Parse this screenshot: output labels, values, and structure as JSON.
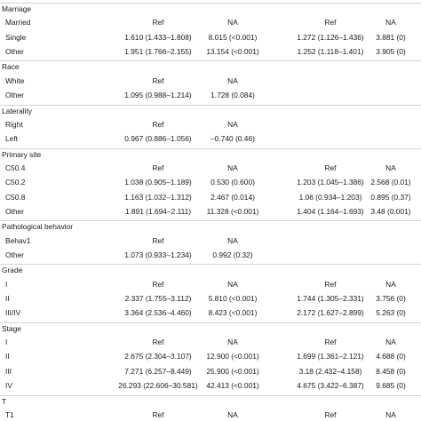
{
  "rows": [
    {
      "label": "Marriage",
      "type": "section"
    },
    {
      "label": "Married",
      "c1": "Ref",
      "c2": "NA",
      "c3": "Ref",
      "c4": "NA"
    },
    {
      "label": "Single",
      "c1": "1.610 (1.433–1.808)",
      "c2": "8.015 (<0.001)",
      "c3": "1.272 (1.126–1.436)",
      "c4": "3.881 (0)"
    },
    {
      "label": "Other",
      "c1": "1.951 (1.766–2.155)",
      "c2": "13.154 (<0.001)",
      "c3": "1.252 (1.118–1.401)",
      "c4": "3.905 (0)"
    },
    {
      "label": "Race",
      "type": "section"
    },
    {
      "label": "White",
      "c1": "Ref",
      "c2": "NA"
    },
    {
      "label": "Other",
      "c1": "1.095 (0.988–1.214)",
      "c2": "1.728 (0.084)"
    },
    {
      "label": "Laterality",
      "type": "section"
    },
    {
      "label": "Right",
      "c1": "Ref",
      "c2": "NA"
    },
    {
      "label": "Left",
      "c1": "0.967 (0.886–1.056)",
      "c2": "–0.740 (0.46)"
    },
    {
      "label": "Primary site",
      "type": "section"
    },
    {
      "label": "C50.4",
      "c1": "Ref",
      "c2": "NA",
      "c3": "Ref",
      "c4": "NA"
    },
    {
      "label": "C50.2",
      "c1": "1.038 (0.905–1.189)",
      "c2": "0.530 (0.600)",
      "c3": "1.203 (1.045–1.386)",
      "c4": "2.568 (0.01)"
    },
    {
      "label": "C50.8",
      "c1": "1.163 (1.032–1.312)",
      "c2": "2.467 (0.014)",
      "c3": "1.06 (0.934–1.203)",
      "c4": "0.895 (0.37)"
    },
    {
      "label": "Other",
      "c1": "1.891 (1.694–2.111)",
      "c2": "11.328 (<0.001)",
      "c3": "1.404 (1.164–1.693)",
      "c4": "3.48 (0.001)"
    },
    {
      "label": "Pathological behavior",
      "type": "section"
    },
    {
      "label": "Behav1",
      "c1": "Ref",
      "c2": "NA"
    },
    {
      "label": "Other",
      "c1": "1.073 (0.933–1.234)",
      "c2": "0.992 (0.32)"
    },
    {
      "label": "Grade",
      "type": "section"
    },
    {
      "label": "I",
      "c1": "Ref",
      "c2": "NA",
      "c3": "Ref",
      "c4": "NA"
    },
    {
      "label": "II",
      "c1": "2.337 (1.755–3.112)",
      "c2": "5.810 (<0.001)",
      "c3": "1.744 (1.305–2.331)",
      "c4": "3.756 (0)"
    },
    {
      "label": "III/IV",
      "c1": "3.364 (2.536–4.460)",
      "c2": "8.423 (<0.001)",
      "c3": "2.172 (1.627–2.899)",
      "c4": "5.263 (0)"
    },
    {
      "label": "Stage",
      "type": "section"
    },
    {
      "label": "I",
      "c1": "Ref",
      "c2": "NA",
      "c3": "Ref",
      "c4": "NA"
    },
    {
      "label": "II",
      "c1": "2.675 (2.304–3.107)",
      "c2": "12.900 (<0.001)",
      "c3": "1.699 (1.361–2.121)",
      "c4": "4.688 (0)"
    },
    {
      "label": "III",
      "c1": "7.271 (6.257–8.449)",
      "c2": "25.900 (<0.001)",
      "c3": "3.18 (2.432–4.158)",
      "c4": "8.458 (0)"
    },
    {
      "label": "IV",
      "c1": "26.293 (22.606–30.581)",
      "c2": "42.413 (<0.001)",
      "c3": "4.675 (3.422–6.387)",
      "c4": "9.685 (0)"
    },
    {
      "label": "T",
      "type": "section"
    },
    {
      "label": "T1",
      "c1": "Ref",
      "c2": "NA",
      "c3": "Ref",
      "c4": "NA"
    }
  ]
}
